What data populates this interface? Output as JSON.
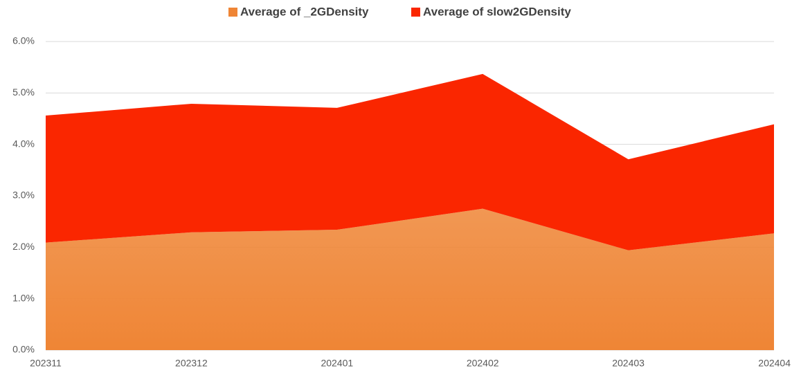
{
  "chart_data": {
    "type": "area",
    "categories": [
      "202311",
      "202312",
      "202401",
      "202402",
      "202403",
      "202404"
    ],
    "series": [
      {
        "name": "Average of _2GDensity",
        "color": "#ef8535",
        "values": [
          2.09,
          2.29,
          2.34,
          2.75,
          1.94,
          2.27
        ]
      },
      {
        "name": "Average of slow2GDensity",
        "color": "#fa2600",
        "values": [
          2.47,
          2.5,
          2.37,
          2.62,
          1.77,
          2.12
        ]
      }
    ],
    "stacked": true,
    "ylim": [
      0,
      6
    ],
    "yticks": [
      {
        "value": 0,
        "label": "0.0%"
      },
      {
        "value": 1,
        "label": "1.0%"
      },
      {
        "value": 2,
        "label": "2.0%"
      },
      {
        "value": 3,
        "label": "3.0%"
      },
      {
        "value": 4,
        "label": "4.0%"
      },
      {
        "value": 5,
        "label": "5.0%"
      },
      {
        "value": 6,
        "label": "6.0%"
      }
    ],
    "grid": true,
    "legend": "top"
  }
}
